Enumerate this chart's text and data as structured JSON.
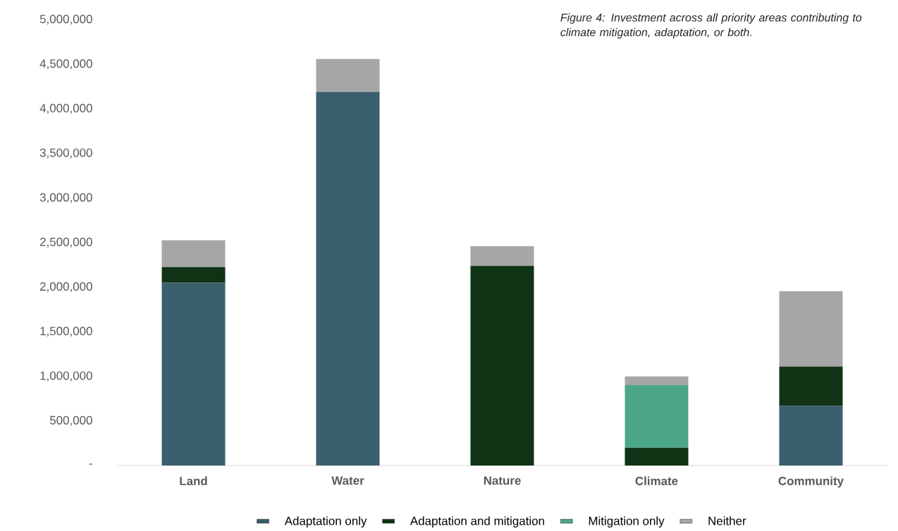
{
  "chart_data": {
    "type": "bar",
    "stacked": true,
    "title": "Figure 4: Investment across all priority areas contributing to climate mitigation, adaptation, or both.",
    "categories": [
      "Land",
      "Water",
      "Nature",
      "Climate",
      "Community"
    ],
    "series": [
      {
        "name": "Adaptation only",
        "color": "#3a5f6d",
        "values": [
          2050000,
          4190000,
          0,
          0,
          670000
        ]
      },
      {
        "name": "Adaptation and mitigation",
        "color": "#0f3314",
        "values": [
          175000,
          0,
          2240000,
          200000,
          440000
        ]
      },
      {
        "name": "Mitigation only",
        "color": "#4ca688",
        "values": [
          0,
          0,
          0,
          700000,
          0
        ]
      },
      {
        "name": "Neither",
        "color": "#a6a6a6",
        "values": [
          300000,
          370000,
          220000,
          100000,
          845000
        ]
      }
    ],
    "ylim": [
      0,
      5000000
    ],
    "yticks": [
      {
        "value": 0,
        "label": "-"
      },
      {
        "value": 500000,
        "label": "500,000"
      },
      {
        "value": 1000000,
        "label": "1,000,000"
      },
      {
        "value": 1500000,
        "label": "1,500,000"
      },
      {
        "value": 2000000,
        "label": "2,000,000"
      },
      {
        "value": 2500000,
        "label": "2,500,000"
      },
      {
        "value": 3000000,
        "label": "3,000,000"
      },
      {
        "value": 3500000,
        "label": "3,500,000"
      },
      {
        "value": 4000000,
        "label": "4,000,000"
      },
      {
        "value": 4500000,
        "label": "4,500,000"
      },
      {
        "value": 5000000,
        "label": "5,000,000"
      }
    ],
    "legend": "bottom"
  }
}
